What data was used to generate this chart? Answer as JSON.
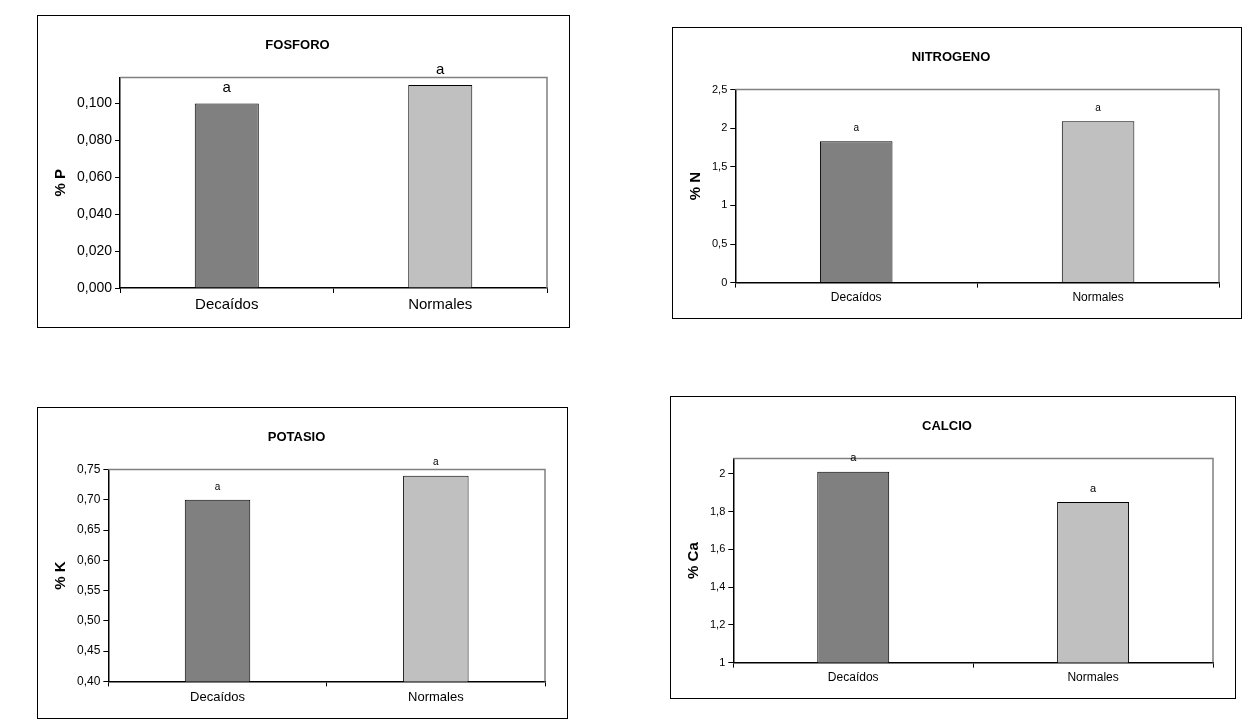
{
  "chart_data": [
    {
      "type": "bar",
      "title": "FOSFORO",
      "ylabel": "% P",
      "categories": [
        "Decaídos",
        "Normales"
      ],
      "values": [
        0.1,
        0.11
      ],
      "colors": [
        "#808080",
        "#c0c0c0"
      ],
      "ylim": [
        0,
        0.114
      ],
      "yticks": [
        {
          "value": 0,
          "label": "0,000"
        },
        {
          "value": 0.02,
          "label": "0,020"
        },
        {
          "value": 0.04,
          "label": "0,040"
        },
        {
          "value": 0.06,
          "label": "0,060"
        },
        {
          "value": 0.08,
          "label": "0,080"
        },
        {
          "value": 0.1,
          "label": "0,100"
        }
      ],
      "grid": false,
      "legend": false,
      "annotations": [
        {
          "text": "a",
          "x": "Decaídos",
          "y": 0.1
        },
        {
          "text": "a",
          "x": "Normales",
          "y": 0.11
        }
      ]
    },
    {
      "type": "bar",
      "title": "NITROGENO",
      "ylabel": "% N",
      "categories": [
        "Decaídos",
        "Normales"
      ],
      "values": [
        1.83,
        2.09
      ],
      "colors": [
        "#808080",
        "#c0c0c0"
      ],
      "ylim": [
        0,
        2.5
      ],
      "yticks": [
        0,
        {
          "value": 0.5,
          "label": "0,5"
        },
        1,
        {
          "value": 1.5,
          "label": "1,5"
        },
        2,
        {
          "value": 2.5,
          "label": "2,5"
        }
      ],
      "grid": false,
      "legend": false,
      "annotations": [
        {
          "text": "a",
          "x": "Decaídos",
          "y": 1.83
        },
        {
          "text": "a",
          "x": "Normales",
          "y": 2.09
        }
      ]
    },
    {
      "type": "bar",
      "title": "POTASIO",
      "ylabel": "% K",
      "categories": [
        "Decaídos",
        "Normales"
      ],
      "values": [
        0.7,
        0.74
      ],
      "colors": [
        "#808080",
        "#c0c0c0"
      ],
      "ylim": [
        0.4,
        0.75
      ],
      "yticks": [
        {
          "value": 0.4,
          "label": "0,40"
        },
        {
          "value": 0.45,
          "label": "0,45"
        },
        {
          "value": 0.5,
          "label": "0,50"
        },
        {
          "value": 0.55,
          "label": "0,55"
        },
        {
          "value": 0.6,
          "label": "0,60"
        },
        {
          "value": 0.65,
          "label": "0,65"
        },
        {
          "value": 0.7,
          "label": "0,70"
        },
        {
          "value": 0.75,
          "label": "0,75"
        }
      ],
      "grid": false,
      "legend": false,
      "annotations": [
        {
          "text": "a",
          "x": "Decaídos",
          "y": 0.7
        },
        {
          "text": "a",
          "x": "Normales",
          "y": 0.74
        }
      ]
    },
    {
      "type": "bar",
      "title": "CALCIO",
      "ylabel": "% Ca",
      "categories": [
        "Decaídos",
        "Normales"
      ],
      "values": [
        2.01,
        1.85
      ],
      "colors": [
        "#808080",
        "#c0c0c0"
      ],
      "ylim": [
        1,
        2.08
      ],
      "yticks": [
        1,
        {
          "value": 1.2,
          "label": "1,2"
        },
        {
          "value": 1.4,
          "label": "1,4"
        },
        {
          "value": 1.6,
          "label": "1,6"
        },
        {
          "value": 1.8,
          "label": "1,8"
        },
        2
      ],
      "grid": false,
      "legend": false,
      "annotations": [
        {
          "text": "a",
          "x": "Decaídos",
          "y": 2.01
        },
        {
          "text": "a",
          "x": "Normales",
          "y": 1.85
        }
      ]
    }
  ]
}
